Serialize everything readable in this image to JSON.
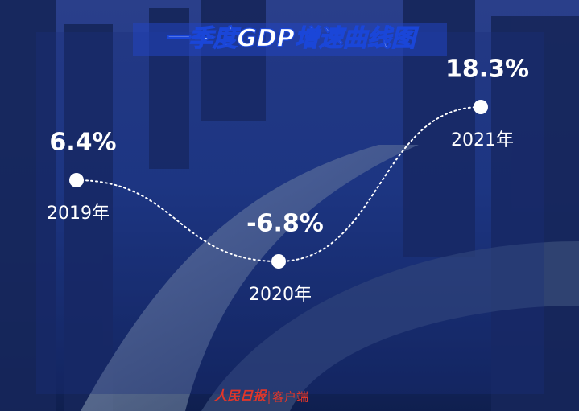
{
  "chart_data": {
    "type": "line",
    "title": "一季度GDP增速曲线图",
    "categories": [
      "2019年",
      "2020年",
      "2021年"
    ],
    "values": [
      6.4,
      -6.8,
      18.3
    ],
    "value_labels": [
      "6.4%",
      "-6.8%",
      "18.3%"
    ],
    "color": "#ffffff",
    "watermark_logo": "人民日报",
    "watermark_text": "客户端"
  }
}
